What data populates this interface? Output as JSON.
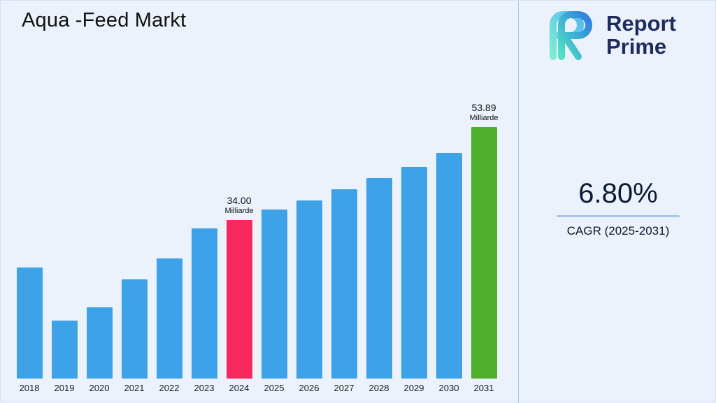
{
  "title": "Aqua -Feed Markt",
  "brand": {
    "line1": "Report",
    "line2": "Prime"
  },
  "stats": {
    "cagr_value": "6.80%",
    "cagr_label": "CAGR (2025-2031)"
  },
  "chart_data": {
    "type": "bar",
    "title": "Aqua -Feed Markt",
    "unit": "Milliarde",
    "categories": [
      "2018",
      "2019",
      "2020",
      "2021",
      "2022",
      "2023",
      "2024",
      "2025",
      "2026",
      "2027",
      "2028",
      "2029",
      "2030",
      "2031"
    ],
    "values": [
      23.8,
      12.4,
      15.2,
      21.3,
      25.8,
      32.2,
      34.0,
      36.3,
      38.1,
      40.5,
      43.0,
      45.3,
      48.4,
      53.89
    ],
    "ylim": [
      0,
      55
    ],
    "grid": false,
    "legend": "none",
    "colors": {
      "default": "#3da2e8",
      "2024": "#f7285e",
      "2031": "#4fae2d"
    },
    "annotations": [
      {
        "year": "2024",
        "value_label": "34.00",
        "unit_label": "Milliarde"
      },
      {
        "year": "2031",
        "value_label": "53.89",
        "unit_label": "Milliarde"
      }
    ]
  }
}
